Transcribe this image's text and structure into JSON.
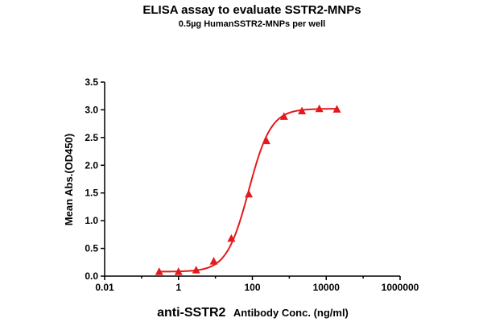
{
  "colors": {
    "series": "#e31a1c",
    "axis": "#000000"
  },
  "chart_data": {
    "type": "scatter",
    "title": "ELISA assay to evaluate SSTR2-MNPs",
    "subtitle": "0.5µg HumanSSTR2-MNPs per well",
    "xlabel_main": "anti-SSTR2",
    "xlabel_rest": "Antibody Conc. (ng/ml)",
    "ylabel": "Mean Abs.(OD450)",
    "x_scale": "log",
    "xlim": [
      0.01,
      1000000
    ],
    "ylim": [
      0,
      3.5
    ],
    "x_ticks": [
      "0.01",
      "1",
      "100",
      "10000",
      "1000000"
    ],
    "y_ticks": [
      "0.0",
      "0.5",
      "1.0",
      "1.5",
      "2.0",
      "2.5",
      "3.0",
      "3.5"
    ],
    "grid": false,
    "series": [
      {
        "marker": "triangle",
        "x": [
          0.3,
          1,
          3,
          9,
          27,
          80,
          240,
          720,
          2200,
          6500,
          19500
        ],
        "y": [
          0.07,
          0.07,
          0.1,
          0.26,
          0.67,
          1.47,
          2.43,
          2.87,
          2.97,
          3.01,
          3.0
        ],
        "fit": "4PL sigmoid"
      }
    ]
  }
}
